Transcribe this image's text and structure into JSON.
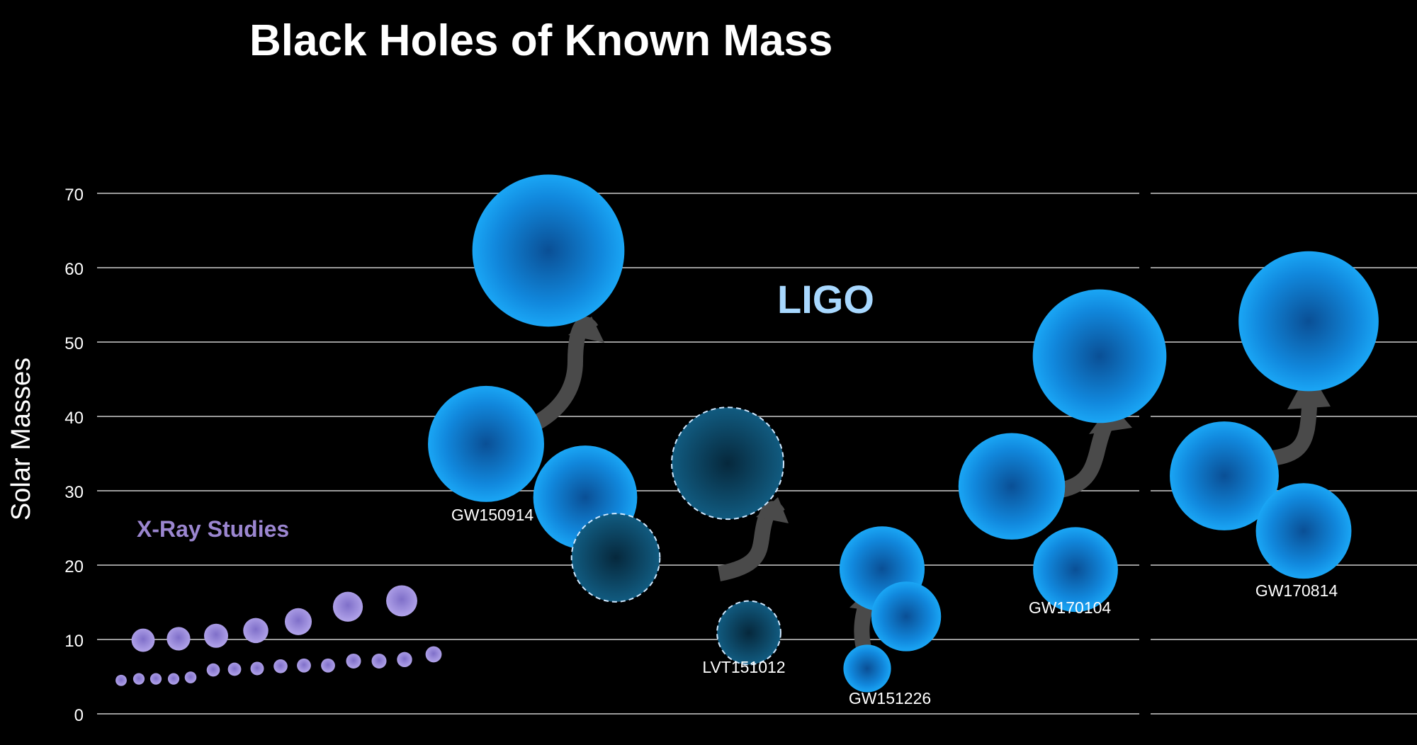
{
  "chart_data": {
    "type": "scatter",
    "title": "Black Holes of Known Mass",
    "ylabel": "Solar Masses",
    "ylim": [
      0,
      70
    ],
    "yticks": [
      0,
      10,
      20,
      30,
      40,
      50,
      60,
      70
    ],
    "grid": true,
    "group_labels": {
      "xray": "X-Ray Studies",
      "ligo": "LIGO"
    },
    "colors": {
      "xray": "#9a86d8",
      "ligo": "#1a9cf0",
      "candidate": "#0f5f86",
      "arrow": "#4a4a4a",
      "grid": "#9a9a9a",
      "text": "#ffffff",
      "xray_label": "#9b86d0",
      "ligo_label": "#a8d8ff"
    },
    "xray_masses_upper": [
      9.9,
      10.1,
      10.5,
      11.2,
      12.4,
      14.4,
      15.2
    ],
    "xray_masses_lower": [
      4.5,
      4.7,
      4.7,
      4.7,
      4.9,
      5.9,
      6.0,
      6.1,
      6.4,
      6.5,
      6.5,
      7.1,
      7.1,
      7.3,
      8.0
    ],
    "events": [
      {
        "name": "GW150914",
        "primary": 36.3,
        "secondary": 29.1,
        "final": 62.3,
        "candidate": false
      },
      {
        "name": "LVT151012",
        "primary": 33.7,
        "secondary": 21.0,
        "final": 10.9,
        "candidate": true
      },
      {
        "name": "GW151226",
        "primary": 19.5,
        "secondary": 13.1,
        "final": 6.1,
        "candidate": false
      },
      {
        "name": "GW170104",
        "primary": 30.6,
        "secondary": 19.4,
        "final": 48.1,
        "candidate": false
      },
      {
        "name": "GW170814",
        "primary": 32.0,
        "secondary": 24.6,
        "final": 52.8,
        "candidate": false
      }
    ]
  }
}
